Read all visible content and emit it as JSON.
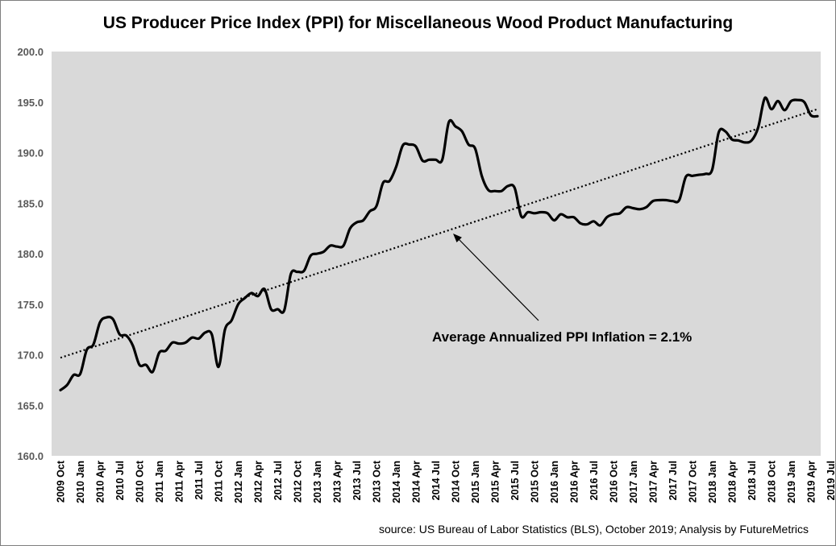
{
  "chart_data": {
    "type": "line",
    "title": "US Producer Price Index (PPI) for Miscellaneous Wood Product Manufacturing",
    "xlabel": "",
    "ylabel": "",
    "ylim": [
      160,
      200
    ],
    "yticks": [
      "200.0",
      "195.0",
      "190.0",
      "185.0",
      "180.0",
      "175.0",
      "170.0",
      "165.0",
      "160.0"
    ],
    "grid": false,
    "x_tick_labels": [
      "2009 Oct",
      "2010 Jan",
      "2010 Apr",
      "2010 Jul",
      "2010 Oct",
      "2011 Jan",
      "2011 Apr",
      "2011 Jul",
      "2011 Oct",
      "2012 Jan",
      "2012 Apr",
      "2012 Jul",
      "2012 Oct",
      "2013 Jan",
      "2013 Apr",
      "2013 Jul",
      "2013 Oct",
      "2014 Jan",
      "2014 Apr",
      "2014 Jul",
      "2014 Oct",
      "2015 Jan",
      "2015 Apr",
      "2015 Jul",
      "2015 Oct",
      "2016 Jan",
      "2016 Apr",
      "2016 Jul",
      "2016 Oct",
      "2017 Jan",
      "2017 Apr",
      "2017 Jul",
      "2017 Oct",
      "2018 Jan",
      "2018 Apr",
      "2018 Jul",
      "2018 Oct",
      "2019 Jan",
      "2019 Apr",
      "2019 Jul"
    ],
    "series": [
      {
        "values": [
          166.5,
          167.0,
          168.0,
          168.1,
          170.5,
          171.0,
          173.2,
          173.7,
          173.5,
          172.0,
          171.9,
          170.9,
          169.0,
          169.0,
          168.3,
          170.2,
          170.4,
          171.2,
          171.1,
          171.2,
          171.7,
          171.6,
          172.2,
          172.0,
          168.8,
          172.5,
          173.4,
          175.0,
          175.6,
          176.1,
          175.8,
          176.5,
          174.5,
          174.5,
          174.4,
          178.0,
          178.2,
          178.3,
          179.8,
          180.0,
          180.2,
          180.8,
          180.7,
          180.8,
          182.5,
          183.1,
          183.3,
          184.2,
          184.7,
          187.0,
          187.2,
          188.6,
          190.7,
          190.8,
          190.6,
          189.2,
          189.3,
          189.3,
          189.3,
          193.0,
          192.6,
          192.1,
          190.8,
          190.4,
          187.7,
          186.3,
          186.2,
          186.2,
          186.7,
          186.5,
          183.7,
          184.1,
          184.0,
          184.1,
          184.0,
          183.3,
          183.9,
          183.6,
          183.6,
          183.0,
          182.9,
          183.2,
          182.8,
          183.6,
          183.9,
          184.0,
          184.6,
          184.5,
          184.4,
          184.6,
          185.2,
          185.3,
          185.3,
          185.2,
          185.3,
          187.6,
          187.7,
          187.8,
          187.9,
          188.3,
          192.0,
          192.1,
          191.3,
          191.2,
          191.0,
          191.2,
          192.5,
          195.4,
          194.3,
          195.1,
          194.2,
          195.1,
          195.2,
          195.0,
          193.7,
          193.6
        ]
      }
    ],
    "trendline": {
      "style": "dotted",
      "start": 169.7,
      "end": 194.3
    },
    "annotation": "Average Annualized PPI Inflation = 2.1%",
    "source": "source: US Bureau of Labor Statistics (BLS), October 2019; Analysis by FutureMetrics",
    "colors": {
      "plot_background": "#d9d9d9",
      "line": "#000000",
      "frame": "#7f7f7f"
    }
  }
}
